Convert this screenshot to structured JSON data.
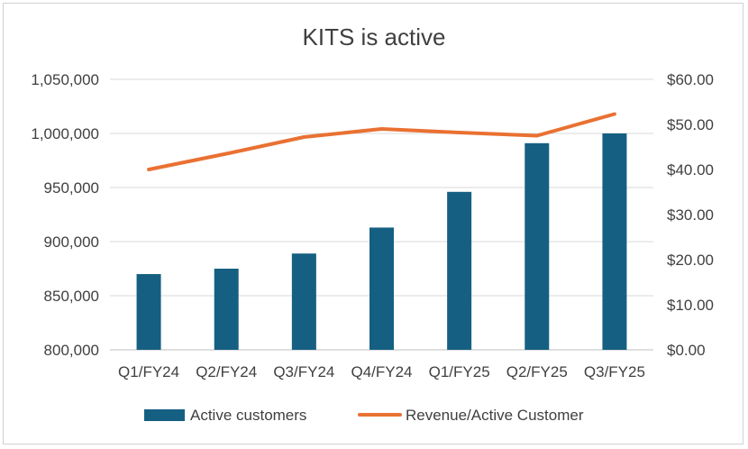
{
  "chart_data": {
    "type": "bar+line",
    "title": "KITS is active",
    "categories": [
      "Q1/FY24",
      "Q2/FY24",
      "Q3/FY24",
      "Q4/FY24",
      "Q1/FY25",
      "Q2/FY25",
      "Q3/FY25"
    ],
    "series": [
      {
        "name": "Active customers",
        "type": "bar",
        "axis": "left",
        "color": "#156082",
        "values": [
          870000,
          875000,
          889000,
          913000,
          946000,
          991000,
          1000000
        ]
      },
      {
        "name": "Revenue/Active Customer",
        "type": "line",
        "axis": "right",
        "color": "#e97132",
        "values": [
          40.0,
          43.5,
          47.2,
          49.0,
          48.2,
          47.5,
          52.3
        ]
      }
    ],
    "y_left": {
      "lim": [
        800000,
        1050000
      ],
      "ticks": [
        800000,
        850000,
        900000,
        950000,
        1000000,
        1050000
      ],
      "tick_labels": [
        "800,000",
        "850,000",
        "900,000",
        "950,000",
        "1,000,000",
        "1,050,000"
      ]
    },
    "y_right": {
      "lim": [
        0,
        60
      ],
      "ticks": [
        0,
        10,
        20,
        30,
        40,
        50,
        60
      ],
      "tick_labels": [
        "$0.00",
        "$10.00",
        "$20.00",
        "$30.00",
        "$40.00",
        "$50.00",
        "$60.00"
      ]
    },
    "grid": true,
    "legend": "bottom"
  }
}
